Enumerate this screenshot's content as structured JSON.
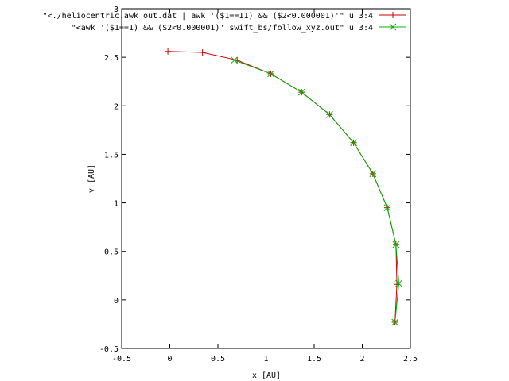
{
  "chart_data": {
    "type": "line",
    "xlabel": "x [AU]",
    "ylabel": "y [AU]",
    "xlim": [
      -0.5,
      2.5
    ],
    "ylim": [
      -0.5,
      3
    ],
    "x_ticks": [
      "-0.5",
      "0",
      "0.5",
      "1",
      "1.5",
      "2",
      "2.5"
    ],
    "y_ticks": [
      "-0.5",
      "0",
      "0.5",
      "1",
      "1.5",
      "2",
      "2.5",
      "3"
    ],
    "x_tick_values": [
      -0.5,
      0,
      0.5,
      1,
      1.5,
      2,
      2.5
    ],
    "y_tick_values": [
      -0.5,
      0,
      0.5,
      1,
      1.5,
      2,
      2.5,
      3
    ],
    "grid": false,
    "legend_position": "top-right",
    "series": [
      {
        "name": "\"<./heliocentric.awk out.dat | awk '($1==11) && ($2<0.000001)'\" u 3:4",
        "color": "#cc0000",
        "marker": "plus",
        "points": [
          [
            -0.02,
            2.56
          ],
          [
            0.34,
            2.55
          ],
          [
            0.7,
            2.47
          ],
          [
            1.05,
            2.33
          ],
          [
            1.37,
            2.14
          ],
          [
            1.66,
            1.91
          ],
          [
            1.91,
            1.62
          ],
          [
            2.11,
            1.3
          ],
          [
            2.26,
            0.95
          ],
          [
            2.35,
            0.57
          ],
          [
            2.36,
            0.16
          ],
          [
            2.34,
            -0.23
          ]
        ]
      },
      {
        "name": "\"<awk '($1==1) && ($2<0.000001)' swift_bs/follow_xyz.out\" u 3:4",
        "color": "#00b000",
        "marker": "cross",
        "points": [
          [
            0.67,
            2.47
          ],
          [
            1.05,
            2.33
          ],
          [
            1.37,
            2.14
          ],
          [
            1.66,
            1.91
          ],
          [
            1.91,
            1.62
          ],
          [
            2.11,
            1.3
          ],
          [
            2.26,
            0.95
          ],
          [
            2.35,
            0.57
          ],
          [
            2.38,
            0.17
          ],
          [
            2.34,
            -0.23
          ]
        ]
      }
    ]
  }
}
